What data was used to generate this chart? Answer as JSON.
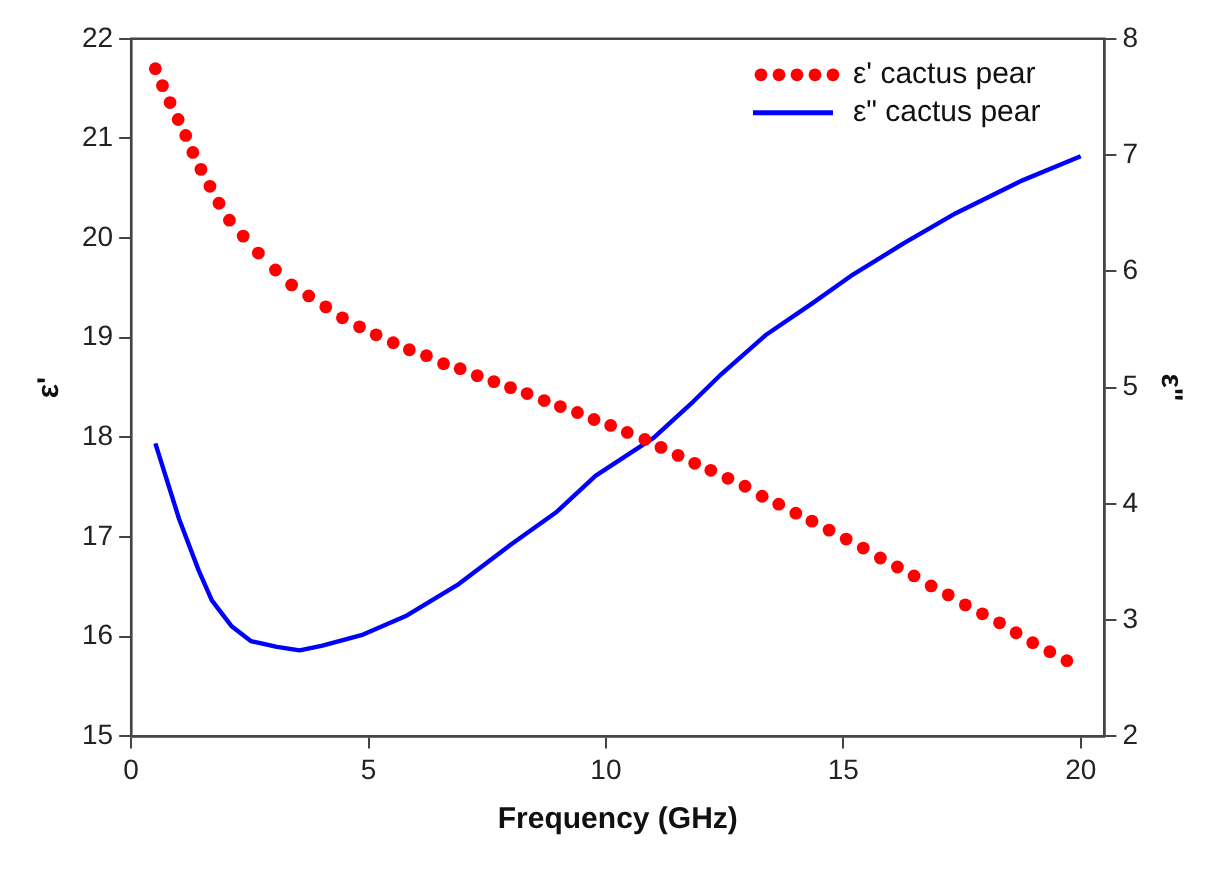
{
  "chart_data": {
    "type": "line",
    "xlabel": "Frequency (GHz)",
    "ylabel": "ε'",
    "y2label": "ε\"",
    "xlim": [
      0,
      20.5
    ],
    "xticks": [
      0,
      5,
      10,
      15,
      20
    ],
    "ylim": [
      15,
      22
    ],
    "yticks": [
      15,
      16,
      17,
      18,
      19,
      20,
      21,
      22
    ],
    "y2lim": [
      2,
      8
    ],
    "y2ticks": [
      2,
      3,
      4,
      5,
      6,
      7,
      8
    ],
    "grid": false,
    "legend": "top right",
    "series": [
      {
        "name": "ε' cactus pear",
        "type": "scatter",
        "marker": "circle",
        "color": "#ff0000",
        "x": [
          0.51,
          0.66,
          0.82,
          0.99,
          1.15,
          1.3,
          1.47,
          1.66,
          1.85,
          2.07,
          2.36,
          2.68,
          3.04,
          3.38,
          3.74,
          4.1,
          4.45,
          4.81,
          5.16,
          5.52,
          5.86,
          6.22,
          6.58,
          6.93,
          7.29,
          7.64,
          7.99,
          8.34,
          8.7,
          9.04,
          9.4,
          9.75,
          10.1,
          10.45,
          10.82,
          11.16,
          11.52,
          11.87,
          12.21,
          12.57,
          12.93,
          13.29,
          13.64,
          14.0,
          14.34,
          14.7,
          15.06,
          15.42,
          15.78,
          16.14,
          16.49,
          16.85,
          17.21,
          17.57,
          17.93,
          18.29,
          18.64,
          18.99,
          19.35,
          19.71
        ],
        "values": [
          21.7,
          21.53,
          21.36,
          21.19,
          21.03,
          20.86,
          20.69,
          20.52,
          20.35,
          20.18,
          20.02,
          19.85,
          19.68,
          19.53,
          19.42,
          19.31,
          19.2,
          19.11,
          19.03,
          18.95,
          18.88,
          18.82,
          18.74,
          18.69,
          18.62,
          18.56,
          18.5,
          18.44,
          18.37,
          18.31,
          18.25,
          18.18,
          18.12,
          18.05,
          17.98,
          17.9,
          17.82,
          17.74,
          17.67,
          17.59,
          17.51,
          17.41,
          17.33,
          17.24,
          17.16,
          17.07,
          16.98,
          16.89,
          16.79,
          16.7,
          16.61,
          16.51,
          16.42,
          16.32,
          16.23,
          16.14,
          16.04,
          15.94,
          15.85,
          15.76
        ]
      },
      {
        "name": "ε\" cactus pear",
        "type": "line",
        "axis": "y2",
        "marker": "none",
        "line_style": "solid",
        "color": "#0000ff",
        "x": [
          0.51,
          1.01,
          1.42,
          1.7,
          2.11,
          2.52,
          3.07,
          3.55,
          4.03,
          4.85,
          5.81,
          6.9,
          8.0,
          8.96,
          9.78,
          11.01,
          11.84,
          12.39,
          13.36,
          14.33,
          15.16,
          16.27,
          17.37,
          18.76,
          20.0
        ],
        "values": [
          4.52,
          3.87,
          3.43,
          3.17,
          2.95,
          2.82,
          2.77,
          2.74,
          2.78,
          2.87,
          3.04,
          3.31,
          3.65,
          3.93,
          4.24,
          4.57,
          4.88,
          5.1,
          5.45,
          5.72,
          5.96,
          6.24,
          6.5,
          6.78,
          6.99
        ]
      }
    ]
  }
}
